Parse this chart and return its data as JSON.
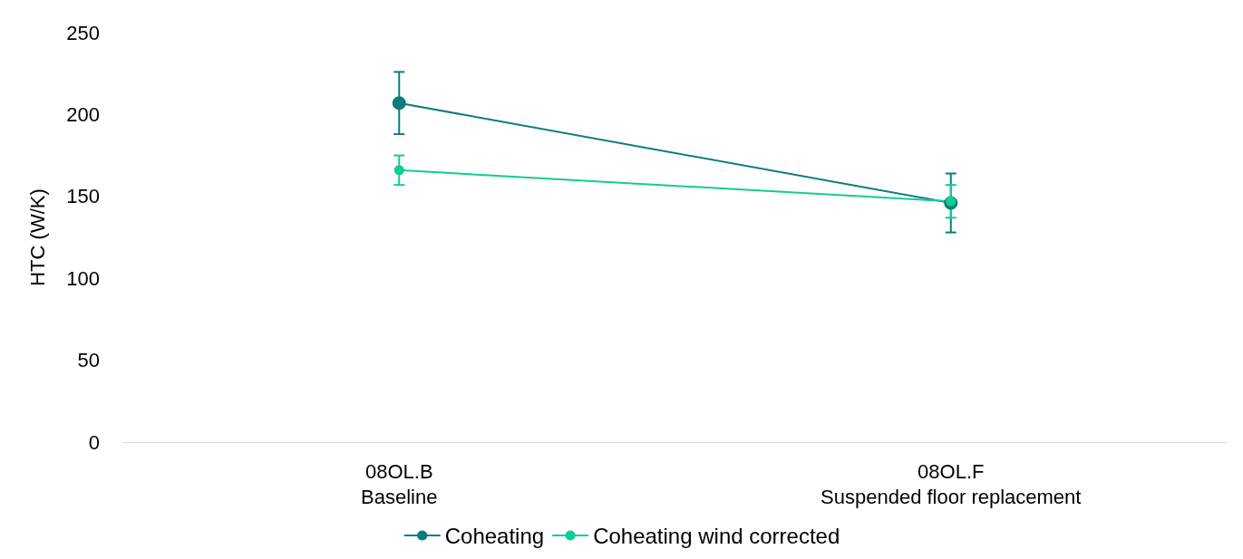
{
  "chart_data": {
    "type": "line",
    "ylabel": "HTC (W/K)",
    "categories": [
      "08OL.B\nBaseline",
      "08OL.F\nSuspended floor replacement"
    ],
    "series": [
      {
        "name": "Coheating",
        "color": "#0b7d7a",
        "values": [
          207,
          146
        ],
        "errors": [
          19,
          18
        ]
      },
      {
        "name": "Coheating wind corrected",
        "color": "#12cc96",
        "values": [
          166,
          147
        ],
        "errors": [
          9,
          10
        ]
      }
    ],
    "ylim": [
      0,
      250
    ],
    "yticks": [
      0,
      50,
      100,
      150,
      200,
      250
    ],
    "grid": false,
    "legend": "bottom",
    "marker": "circle",
    "line_style": "solid"
  }
}
